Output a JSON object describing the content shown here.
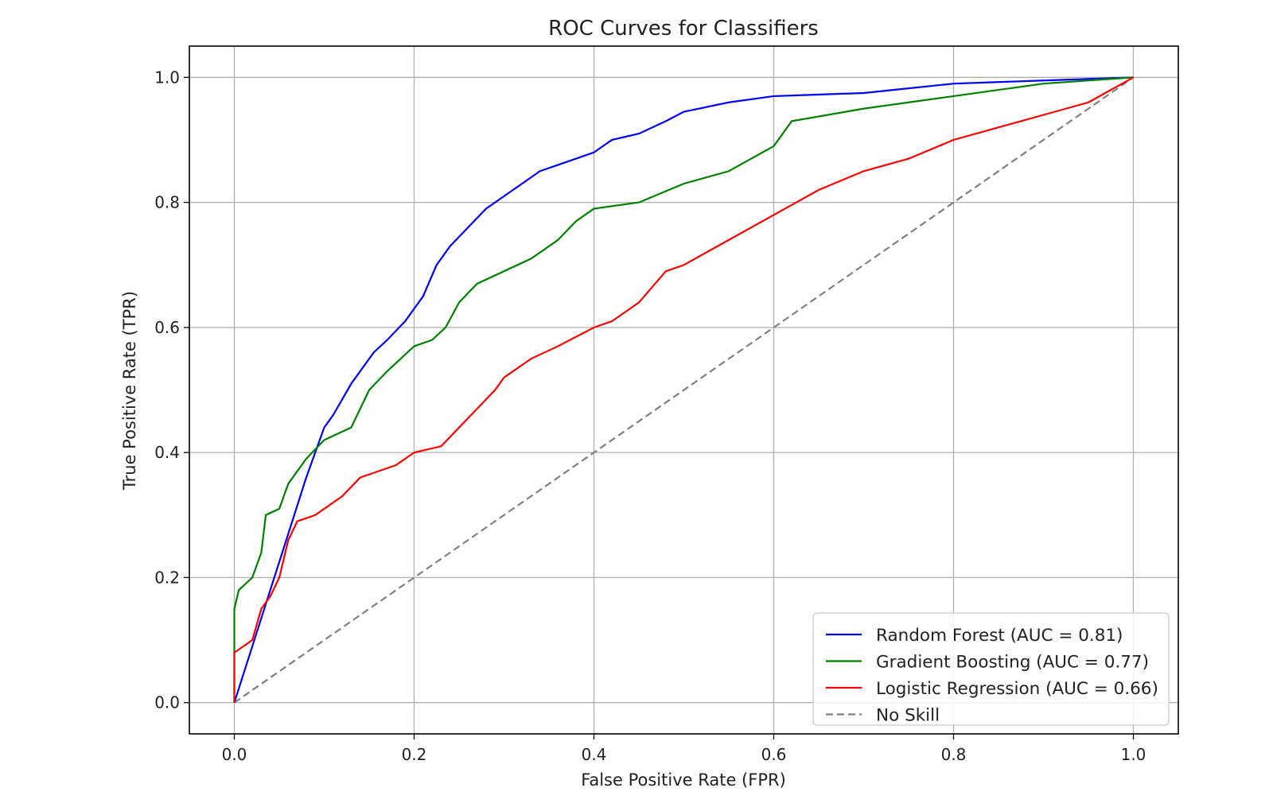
{
  "chart_data": {
    "type": "line",
    "title": "ROC Curves for Classifiers",
    "xlabel": "False Positive Rate (FPR)",
    "ylabel": "True Positive Rate (TPR)",
    "xlim": [
      -0.05,
      1.05
    ],
    "ylim": [
      -0.05,
      1.05
    ],
    "xticks": [
      0.0,
      0.2,
      0.4,
      0.6,
      0.8,
      1.0
    ],
    "yticks": [
      0.0,
      0.2,
      0.4,
      0.6,
      0.8,
      1.0
    ],
    "xtick_labels": [
      "0.0",
      "0.2",
      "0.4",
      "0.6",
      "0.8",
      "1.0"
    ],
    "ytick_labels": [
      "0.0",
      "0.2",
      "0.4",
      "0.6",
      "0.8",
      "1.0"
    ],
    "grid": true,
    "legend_position": "lower right",
    "series": [
      {
        "name": "Random Forest (AUC = 0.81)",
        "color": "#0000ff",
        "style": "solid",
        "x": [
          0.0,
          0.02,
          0.04,
          0.06,
          0.08,
          0.1,
          0.11,
          0.13,
          0.155,
          0.17,
          0.19,
          0.21,
          0.225,
          0.24,
          0.26,
          0.28,
          0.3,
          0.32,
          0.34,
          0.36,
          0.38,
          0.4,
          0.42,
          0.45,
          0.48,
          0.5,
          0.55,
          0.6,
          0.7,
          0.8,
          0.9,
          1.0
        ],
        "y": [
          0.0,
          0.09,
          0.18,
          0.27,
          0.36,
          0.44,
          0.46,
          0.51,
          0.56,
          0.58,
          0.61,
          0.65,
          0.7,
          0.73,
          0.76,
          0.79,
          0.81,
          0.83,
          0.85,
          0.86,
          0.87,
          0.88,
          0.9,
          0.91,
          0.93,
          0.945,
          0.96,
          0.97,
          0.975,
          0.99,
          0.995,
          1.0
        ]
      },
      {
        "name": "Gradient Boosting (AUC = 0.77)",
        "color": "#008000",
        "style": "solid",
        "x": [
          0.0,
          0.0,
          0.005,
          0.02,
          0.03,
          0.035,
          0.05,
          0.06,
          0.08,
          0.1,
          0.13,
          0.15,
          0.17,
          0.2,
          0.22,
          0.235,
          0.25,
          0.27,
          0.3,
          0.33,
          0.36,
          0.38,
          0.4,
          0.45,
          0.5,
          0.55,
          0.6,
          0.62,
          0.7,
          0.8,
          0.9,
          1.0
        ],
        "y": [
          0.0,
          0.15,
          0.18,
          0.2,
          0.24,
          0.3,
          0.31,
          0.35,
          0.39,
          0.42,
          0.44,
          0.5,
          0.53,
          0.57,
          0.58,
          0.6,
          0.64,
          0.67,
          0.69,
          0.71,
          0.74,
          0.77,
          0.79,
          0.8,
          0.83,
          0.85,
          0.89,
          0.93,
          0.95,
          0.97,
          0.99,
          1.0
        ]
      },
      {
        "name": "Logistic Regression (AUC = 0.66)",
        "color": "#ff0000",
        "style": "solid",
        "x": [
          0.0,
          0.0,
          0.02,
          0.03,
          0.04,
          0.05,
          0.06,
          0.07,
          0.09,
          0.1,
          0.12,
          0.14,
          0.16,
          0.18,
          0.2,
          0.23,
          0.25,
          0.27,
          0.29,
          0.3,
          0.33,
          0.36,
          0.4,
          0.42,
          0.45,
          0.48,
          0.5,
          0.55,
          0.6,
          0.65,
          0.7,
          0.75,
          0.8,
          0.85,
          0.9,
          0.95,
          1.0
        ],
        "y": [
          0.0,
          0.08,
          0.1,
          0.15,
          0.17,
          0.2,
          0.26,
          0.29,
          0.3,
          0.31,
          0.33,
          0.36,
          0.37,
          0.38,
          0.4,
          0.41,
          0.44,
          0.47,
          0.5,
          0.52,
          0.55,
          0.57,
          0.6,
          0.61,
          0.64,
          0.69,
          0.7,
          0.74,
          0.78,
          0.82,
          0.85,
          0.87,
          0.9,
          0.92,
          0.94,
          0.96,
          1.0
        ]
      },
      {
        "name": "No Skill",
        "color": "#808080",
        "style": "dashed",
        "x": [
          0.0,
          1.0
        ],
        "y": [
          0.0,
          1.0
        ]
      }
    ]
  }
}
